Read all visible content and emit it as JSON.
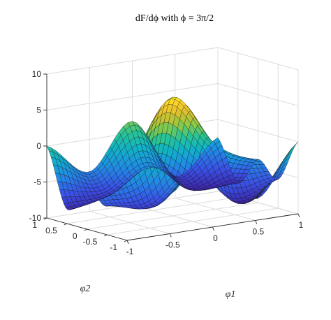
{
  "chart_data": {
    "type": "surface",
    "title": "dF/dϕ with ϕ = 3π/2",
    "xlabel": "φ1",
    "ylabel": "φ2",
    "zlabel": "",
    "xlim": [
      -1,
      1
    ],
    "ylim": [
      -1,
      1
    ],
    "zlim": [
      -10,
      10
    ],
    "x_ticks": [
      "-1",
      "-0.5",
      "0",
      "0.5",
      "1"
    ],
    "y_ticks": [
      "-1",
      "-0.5",
      "0",
      "0.5",
      "1"
    ],
    "z_ticks": [
      "-10",
      "-5",
      "0",
      "5",
      "10"
    ],
    "grid": true,
    "colormap": "parula",
    "mesh_color": "#000000",
    "background": "#ffffff",
    "surface_samples": {
      "description_of_axes": "z sampled at x (φ1) and y (φ2)",
      "x": [
        -1,
        -0.5,
        0,
        0.5,
        1
      ],
      "y": [
        -1,
        -0.5,
        0,
        0.5,
        1
      ],
      "z": [
        [
          0.0,
          -4.5,
          1.6,
          -7.0,
          0.0
        ],
        [
          -6.0,
          -7.0,
          -3.0,
          -8.0,
          -6.0
        ],
        [
          -4.0,
          -2.0,
          6.5,
          -1.0,
          -4.0
        ],
        [
          -8.0,
          -7.0,
          -4.0,
          -8.0,
          -8.0
        ],
        [
          0.0,
          -4.5,
          1.6,
          -7.0,
          -2.5
        ]
      ]
    }
  }
}
